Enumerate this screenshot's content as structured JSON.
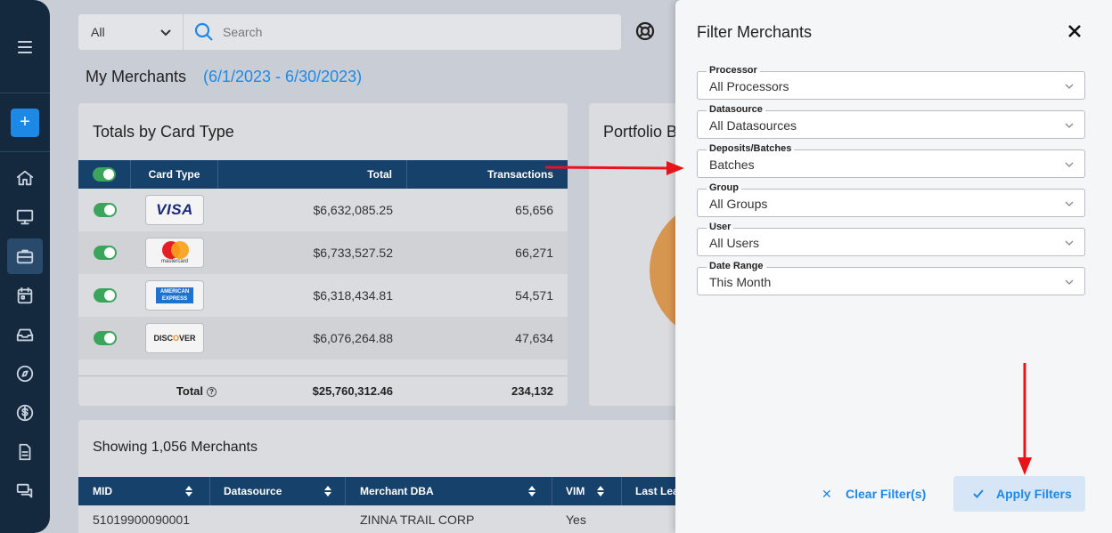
{
  "header": {
    "scope_value": "All",
    "search_placeholder": "Search"
  },
  "page": {
    "title": "My Merchants",
    "date_range": "(6/1/2023 - 6/30/2023)"
  },
  "totals_panel": {
    "title": "Totals by Card Type",
    "columns": {
      "card_type": "Card Type",
      "total": "Total",
      "transactions": "Transactions"
    },
    "rows": [
      {
        "card": "visa",
        "total": "$6,632,085.25",
        "transactions": "65,656"
      },
      {
        "card": "mastercard",
        "total": "$6,733,527.52",
        "transactions": "66,271"
      },
      {
        "card": "american-express",
        "total": "$6,318,434.81",
        "transactions": "54,571"
      },
      {
        "card": "discover",
        "total": "$6,076,264.88",
        "transactions": "47,634"
      }
    ],
    "footer": {
      "label": "Total",
      "total": "$25,760,312.46",
      "transactions": "234,132"
    },
    "logos": {
      "visa": "VISA",
      "mastercard": "mastercard",
      "amex_line1": "AMERICAN",
      "amex_line2": "EXPRESS",
      "discover_a": "DISC",
      "discover_b": "O",
      "discover_c": "VER"
    }
  },
  "portfolio_panel": {
    "title": "Portfolio B"
  },
  "merchants_panel": {
    "title": "Showing 1,056 Merchants",
    "columns": [
      "MID",
      "Datasource",
      "Merchant DBA",
      "VIM",
      "Last Lea"
    ],
    "first_row": {
      "mid": "51019900090001",
      "datasource": "",
      "dba": "ZINNA TRAIL CORP",
      "vim": "Yes"
    }
  },
  "drawer": {
    "title": "Filter Merchants",
    "fields": [
      {
        "label": "Processor",
        "value": "All Processors"
      },
      {
        "label": "Datasource",
        "value": "All Datasources"
      },
      {
        "label": "Deposits/Batches",
        "value": "Batches"
      },
      {
        "label": "Group",
        "value": "All Groups"
      },
      {
        "label": "User",
        "value": "All Users"
      },
      {
        "label": "Date Range",
        "value": "This Month"
      }
    ],
    "clear_label": "Clear Filter(s)",
    "apply_label": "Apply Filters"
  },
  "colors": {
    "sidebar": "#14283e",
    "accent": "#1e88e5",
    "table_header": "#15416a",
    "toggle_on": "#3ba55c",
    "annotation_arrow": "#e8141a"
  },
  "icons": {
    "sidebar": [
      "menu-icon",
      "plus-icon",
      "home-icon",
      "monitor-icon",
      "briefcase-icon",
      "calendar-icon",
      "inbox-icon",
      "compass-icon",
      "dollar-icon",
      "document-icon",
      "chat-icon"
    ]
  }
}
